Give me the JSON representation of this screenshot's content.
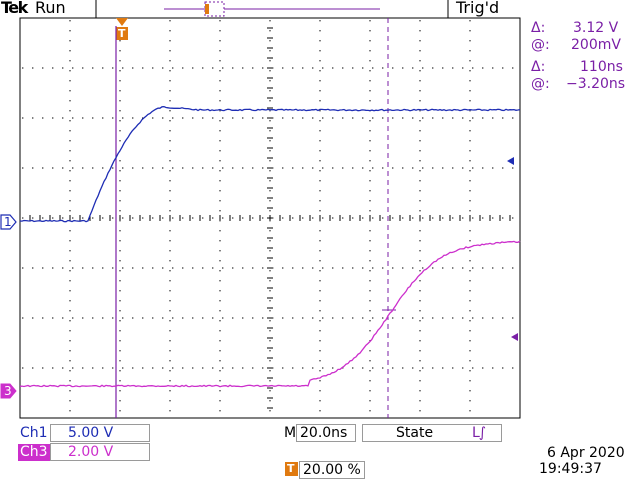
{
  "brand": "Tek",
  "acq_state": "Run",
  "trigger_status": "Trig'd",
  "trigger_marker_glyph": "T",
  "cursor_readout": {
    "volt_delta_symbol": "Δ:",
    "volt_delta": "3.12 V",
    "volt_at_symbol": "@:",
    "volt_at": "200mV",
    "time_delta_symbol": "Δ:",
    "time_delta": "110ns",
    "time_at_symbol": "@:",
    "time_at": "−3.20ns"
  },
  "channels": [
    {
      "id": "1",
      "name": "Ch1",
      "scale": "5.00 V",
      "color": "#1e2db4"
    },
    {
      "id": "3",
      "name": "Ch3",
      "scale": "2.00 V",
      "color": "#cc2fcc"
    }
  ],
  "timebase": {
    "label": "M",
    "value": "20.0ns"
  },
  "state_label": "State",
  "trigger_slope_glyph": "L∫",
  "trigger_position_icon_glyph": "T",
  "trigger_position": "20.00 %",
  "date": "6 Apr 2020",
  "time": "19:49:37",
  "colors": {
    "ch1": "#1e2db4",
    "ch3": "#cc2fcc",
    "cursor": "#7a1fa6",
    "trigger_marker": "#e07a10",
    "grid": "#000000"
  }
}
